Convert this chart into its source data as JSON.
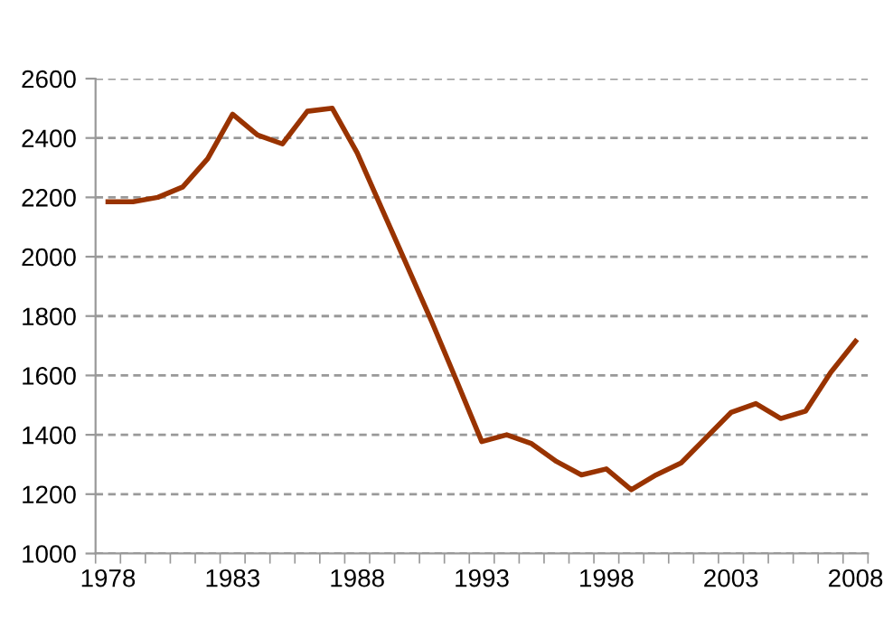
{
  "chart_data": {
    "type": "line",
    "categories": [
      "1978",
      null,
      null,
      null,
      null,
      "1983",
      null,
      null,
      null,
      null,
      "1988",
      null,
      null,
      null,
      null,
      "1993",
      null,
      null,
      null,
      null,
      "1998",
      null,
      null,
      null,
      null,
      "2003",
      null,
      null,
      null,
      null,
      "2008"
    ],
    "series": [
      {
        "color": "#993300",
        "values": [
          2185,
          2185,
          2200,
          2235,
          2330,
          2480,
          2410,
          2380,
          2490,
          2500,
          2350,
          2160,
          1970,
          1780,
          1580,
          1377,
          1400,
          1370,
          1310,
          1265,
          1285,
          1215,
          1265,
          1305,
          1390,
          1475,
          1505,
          1455,
          1480,
          1610,
          1715
        ]
      }
    ],
    "ylim": [
      1000,
      2600
    ],
    "yticks": [
      1000,
      1200,
      1400,
      1600,
      1800,
      2000,
      2200,
      2400,
      2600
    ],
    "grid": "y",
    "legend": false,
    "marker": "none",
    "line_style": "solid"
  }
}
